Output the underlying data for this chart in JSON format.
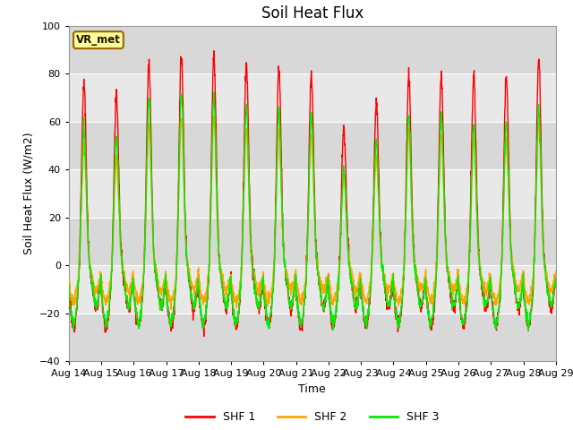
{
  "title": "Soil Heat Flux",
  "ylabel": "Soil Heat Flux (W/m2)",
  "xlabel": "Time",
  "ylim": [
    -40,
    100
  ],
  "yticks": [
    -40,
    -20,
    0,
    20,
    40,
    60,
    80,
    100
  ],
  "xtick_labels": [
    "Aug 14",
    "Aug 15",
    "Aug 16",
    "Aug 17",
    "Aug 18",
    "Aug 19",
    "Aug 20",
    "Aug 21",
    "Aug 22",
    "Aug 23",
    "Aug 24",
    "Aug 25",
    "Aug 26",
    "Aug 27",
    "Aug 28",
    "Aug 29"
  ],
  "line_colors": [
    "#ff0000",
    "#ffa500",
    "#00ee00"
  ],
  "line_labels": [
    "SHF 1",
    "SHF 2",
    "SHF 3"
  ],
  "line_width": 1.0,
  "background_color": "#ffffff",
  "plot_bg_color": "#e8e8e8",
  "grid_color": "#ffffff",
  "band_colors": [
    "#d8d8d8",
    "#e8e8e8"
  ],
  "watermark_text": "VR_met",
  "watermark_bg": "#ffff99",
  "watermark_border": "#996600",
  "title_fontsize": 12,
  "label_fontsize": 9,
  "tick_fontsize": 8,
  "day_peaks_shf1": [
    77,
    72,
    85,
    88,
    88,
    84,
    83,
    80,
    59,
    69,
    80,
    80,
    80,
    80,
    87
  ],
  "day_peaks_shf2": [
    50,
    45,
    60,
    62,
    62,
    58,
    57,
    55,
    38,
    45,
    55,
    55,
    53,
    53,
    60
  ],
  "day_peaks_shf3": [
    58,
    55,
    70,
    73,
    70,
    66,
    65,
    63,
    40,
    53,
    63,
    63,
    60,
    60,
    66
  ],
  "shf1_night": -25,
  "shf2_night": -15,
  "shf3_night": -24,
  "n_days": 15,
  "pts_per_day": 144
}
